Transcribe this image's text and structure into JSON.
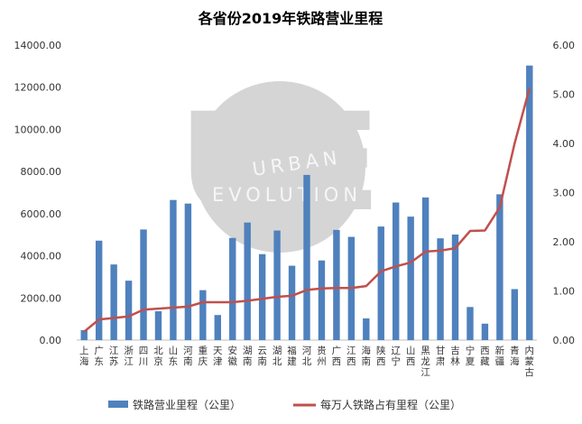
{
  "chart_data": {
    "type": "bar",
    "title": "各省份2019年铁路营业里程",
    "categories": [
      "上海",
      "广东",
      "江苏",
      "浙江",
      "四川",
      "北京",
      "山东",
      "河南",
      "重庆",
      "天津",
      "安徽",
      "湖南",
      "云南",
      "湖北",
      "福建",
      "河北",
      "贵州",
      "广西",
      "江西",
      "海南",
      "陕西",
      "辽宁",
      "山西",
      "黑龙江",
      "甘肃",
      "吉林",
      "宁夏",
      "西藏",
      "新疆",
      "青海",
      "内蒙古"
    ],
    "series": [
      {
        "name": "铁路营业里程（公里）",
        "type": "bar",
        "axis": "left",
        "color": "#4f81bd",
        "values": [
          470,
          4720,
          3590,
          2820,
          5250,
          1370,
          6650,
          6480,
          2370,
          1190,
          4850,
          5580,
          4080,
          5200,
          3530,
          7840,
          3780,
          5230,
          4900,
          1030,
          5390,
          6530,
          5860,
          6770,
          4830,
          5010,
          1570,
          780,
          6920,
          2420,
          13030
        ]
      },
      {
        "name": "每万人铁路占有里程（公里）",
        "type": "line",
        "axis": "right",
        "color": "#c0504d",
        "values": [
          0.17,
          0.42,
          0.45,
          0.48,
          0.62,
          0.64,
          0.66,
          0.68,
          0.77,
          0.77,
          0.77,
          0.8,
          0.84,
          0.88,
          0.9,
          1.02,
          1.05,
          1.06,
          1.06,
          1.1,
          1.4,
          1.5,
          1.58,
          1.8,
          1.82,
          1.87,
          2.22,
          2.23,
          2.7,
          4.0,
          5.12
        ]
      }
    ],
    "y_left": {
      "min": 0,
      "max": 14000,
      "ticks": [
        "0.00",
        "2000.00",
        "4000.00",
        "6000.00",
        "8000.00",
        "10000.00",
        "12000.00",
        "14000.00"
      ]
    },
    "y_right": {
      "min": 0,
      "max": 6,
      "ticks": [
        "0.00",
        "1.00",
        "2.00",
        "3.00",
        "4.00",
        "5.00",
        "6.00"
      ]
    },
    "grid": false,
    "legend_position": "bottom"
  },
  "watermark": {
    "line1": "URBAN",
    "line2": "EVOLUTION",
    "letters": "UE"
  }
}
